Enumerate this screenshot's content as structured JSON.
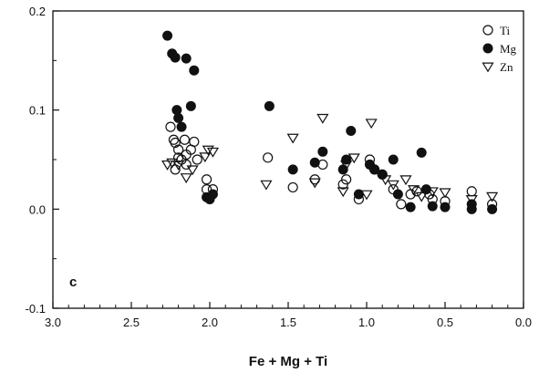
{
  "chart_data": {
    "type": "scatter",
    "title": "",
    "xlabel": "Fe + Mg + Ti",
    "ylabel": "",
    "panel_label": "c",
    "xlim": [
      3.0,
      0.0
    ],
    "ylim": [
      -0.1,
      0.2
    ],
    "x_reversed": true,
    "x_ticks": [
      3.0,
      2.5,
      2.0,
      1.5,
      1.0,
      0.5,
      0.0
    ],
    "x_tick_labels": [
      "3.0",
      "2.5",
      "2.0",
      "1.5",
      "1.0",
      "0.5",
      "0.0"
    ],
    "y_ticks": [
      -0.1,
      0.0,
      0.1,
      0.2
    ],
    "y_tick_labels": [
      "-0.1",
      "0.0",
      "0.1",
      "0.2"
    ],
    "grid": false,
    "legend_position": "top-right",
    "series": [
      {
        "name": "Ti",
        "marker": "open-circle",
        "color": "#111111",
        "points": [
          [
            2.25,
            0.083
          ],
          [
            2.23,
            0.07
          ],
          [
            2.22,
            0.067
          ],
          [
            2.2,
            0.06
          ],
          [
            2.18,
            0.05
          ],
          [
            2.16,
            0.07
          ],
          [
            2.15,
            0.055
          ],
          [
            2.12,
            0.06
          ],
          [
            2.1,
            0.068
          ],
          [
            2.08,
            0.05
          ],
          [
            2.22,
            0.04
          ],
          [
            2.2,
            0.052
          ],
          [
            2.15,
            0.045
          ],
          [
            2.02,
            0.03
          ],
          [
            2.02,
            0.02
          ],
          [
            1.98,
            0.02
          ],
          [
            1.63,
            0.052
          ],
          [
            1.47,
            0.022
          ],
          [
            1.33,
            0.03
          ],
          [
            1.28,
            0.045
          ],
          [
            1.15,
            0.025
          ],
          [
            1.13,
            0.03
          ],
          [
            1.05,
            0.01
          ],
          [
            0.98,
            0.05
          ],
          [
            0.95,
            0.04
          ],
          [
            0.9,
            0.035
          ],
          [
            0.83,
            0.02
          ],
          [
            0.78,
            0.005
          ],
          [
            0.72,
            0.015
          ],
          [
            0.68,
            0.018
          ],
          [
            0.6,
            0.015
          ],
          [
            0.58,
            0.01
          ],
          [
            0.5,
            0.008
          ],
          [
            0.33,
            0.018
          ],
          [
            0.2,
            0.005
          ]
        ]
      },
      {
        "name": "Mg",
        "marker": "filled-circle",
        "color": "#111111",
        "points": [
          [
            2.27,
            0.175
          ],
          [
            2.24,
            0.157
          ],
          [
            2.22,
            0.153
          ],
          [
            2.15,
            0.152
          ],
          [
            2.1,
            0.14
          ],
          [
            2.21,
            0.1
          ],
          [
            2.12,
            0.104
          ],
          [
            2.18,
            0.083
          ],
          [
            2.2,
            0.092
          ],
          [
            2.02,
            0.012
          ],
          [
            2.0,
            0.01
          ],
          [
            1.98,
            0.015
          ],
          [
            1.62,
            0.104
          ],
          [
            1.47,
            0.04
          ],
          [
            1.33,
            0.047
          ],
          [
            1.28,
            0.058
          ],
          [
            1.15,
            0.04
          ],
          [
            1.13,
            0.05
          ],
          [
            1.1,
            0.079
          ],
          [
            1.05,
            0.015
          ],
          [
            0.98,
            0.045
          ],
          [
            0.95,
            0.04
          ],
          [
            0.9,
            0.035
          ],
          [
            0.83,
            0.05
          ],
          [
            0.8,
            0.015
          ],
          [
            0.72,
            0.002
          ],
          [
            0.65,
            0.057
          ],
          [
            0.62,
            0.02
          ],
          [
            0.58,
            0.003
          ],
          [
            0.5,
            0.002
          ],
          [
            0.33,
            0.005
          ],
          [
            0.33,
            0.0
          ],
          [
            0.2,
            0.0
          ]
        ]
      },
      {
        "name": "Zn",
        "marker": "open-triangle-down",
        "color": "#111111",
        "points": [
          [
            2.27,
            0.045
          ],
          [
            2.24,
            0.047
          ],
          [
            2.2,
            0.045
          ],
          [
            2.15,
            0.032
          ],
          [
            2.11,
            0.04
          ],
          [
            2.03,
            0.053
          ],
          [
            2.01,
            0.06
          ],
          [
            1.98,
            0.058
          ],
          [
            1.64,
            0.025
          ],
          [
            1.47,
            0.072
          ],
          [
            1.33,
            0.027
          ],
          [
            1.28,
            0.092
          ],
          [
            1.15,
            0.018
          ],
          [
            1.13,
            0.045
          ],
          [
            1.08,
            0.052
          ],
          [
            1.0,
            0.015
          ],
          [
            0.97,
            0.087
          ],
          [
            0.88,
            0.03
          ],
          [
            0.83,
            0.025
          ],
          [
            0.75,
            0.03
          ],
          [
            0.7,
            0.02
          ],
          [
            0.65,
            0.013
          ],
          [
            0.58,
            0.018
          ],
          [
            0.5,
            0.017
          ],
          [
            0.33,
            0.01
          ],
          [
            0.2,
            0.013
          ]
        ]
      }
    ]
  }
}
